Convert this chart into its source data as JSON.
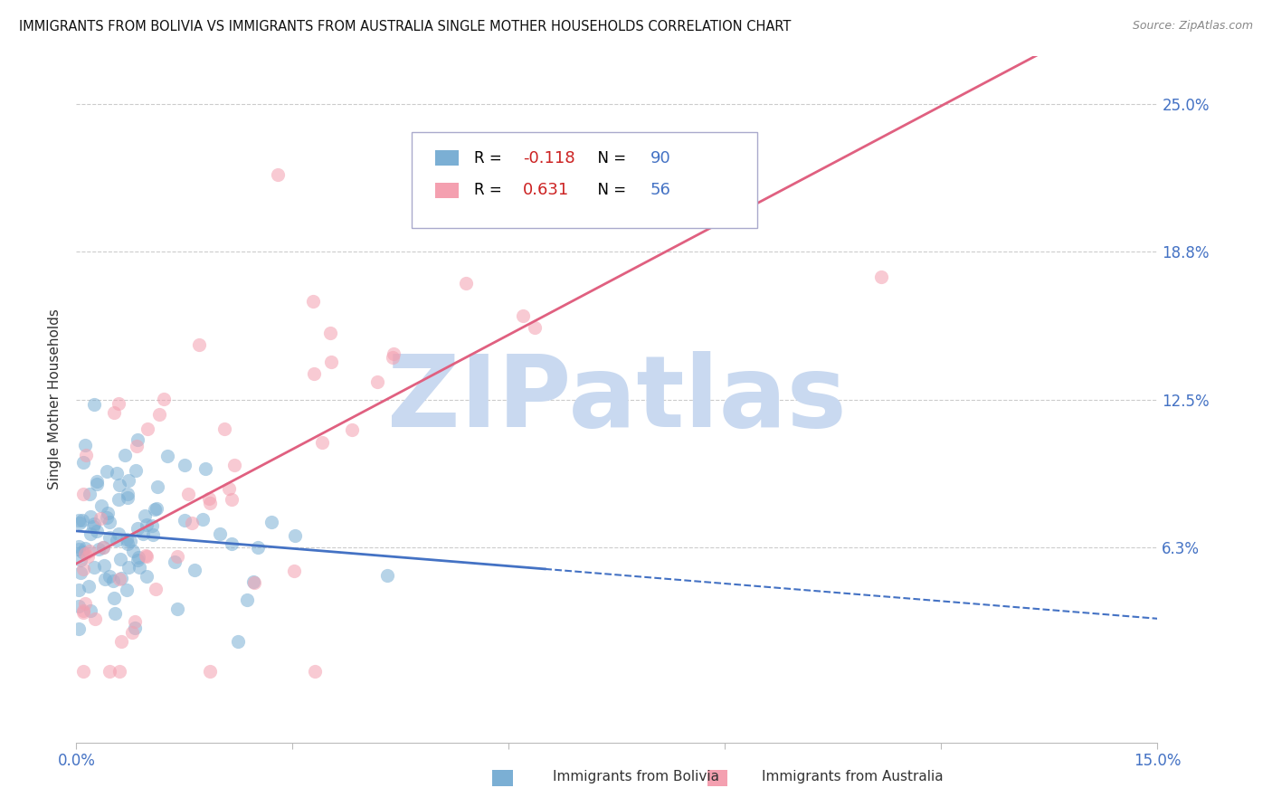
{
  "title": "IMMIGRANTS FROM BOLIVIA VS IMMIGRANTS FROM AUSTRALIA SINGLE MOTHER HOUSEHOLDS CORRELATION CHART",
  "source": "Source: ZipAtlas.com",
  "ylabel": "Single Mother Households",
  "ytick_vals": [
    0.0,
    0.0625,
    0.125,
    0.1875,
    0.25
  ],
  "ytick_labels": [
    "",
    "6.3%",
    "12.5%",
    "18.8%",
    "25.0%"
  ],
  "xmin": 0.0,
  "xmax": 0.15,
  "ymin": -0.02,
  "ymax": 0.27,
  "bolivia_color": "#7bafd4",
  "australia_color": "#f4a0b0",
  "bolivia_R": -0.118,
  "bolivia_N": 90,
  "australia_R": 0.631,
  "australia_N": 56,
  "watermark": "ZIPatlas",
  "watermark_color": "#c9d9f0",
  "dot_size": 120,
  "dot_alpha": 0.55,
  "legend_box_color": "#e8f0fa",
  "legend_border_color": "#aaaacc"
}
